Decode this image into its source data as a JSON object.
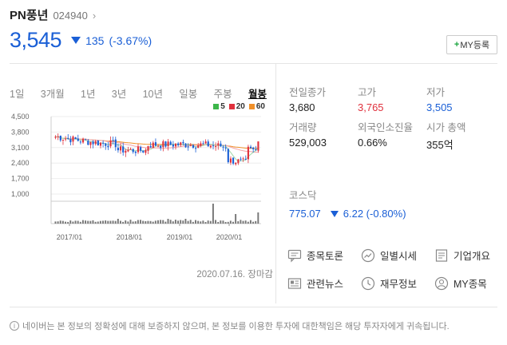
{
  "stock": {
    "name": "PN풍년",
    "code": "024940",
    "price": "3,545",
    "change": "135",
    "change_pct": "(-3.67%)"
  },
  "my_button": {
    "plus": "+",
    "label": "MY등록"
  },
  "period_tabs": [
    "1일",
    "3개월",
    "1년",
    "3년",
    "10년",
    "일봉",
    "주봉",
    "월봉"
  ],
  "active_tab": "월봉",
  "legend": [
    {
      "label": "5",
      "color": "#3cb64a"
    },
    {
      "label": "20",
      "color": "#e0313d"
    },
    {
      "label": "60",
      "color": "#f0902a"
    }
  ],
  "chart_data": {
    "type": "candlestick",
    "ylim": [
      1000,
      4500
    ],
    "y_ticks": [
      "4,500",
      "3,800",
      "3,100",
      "2,400",
      "1,700",
      "1,000"
    ],
    "x_ticks": [
      "2017/01",
      "2018/01",
      "2019/01",
      "2020/01"
    ],
    "date_label": "2020.07.16. 장마감"
  },
  "info": {
    "prev_close": {
      "label": "전일종가",
      "value": "3,680"
    },
    "high": {
      "label": "고가",
      "value": "3,765"
    },
    "low": {
      "label": "저가",
      "value": "3,505"
    },
    "volume": {
      "label": "거래량",
      "value": "529,003"
    },
    "foreign": {
      "label": "외국인소진율",
      "value": "0.66%"
    },
    "market_cap": {
      "label": "시가 총액",
      "value": "355억"
    }
  },
  "kosdaq": {
    "label": "코스닥",
    "value": "775.07",
    "change": "6.22 (-0.80%)"
  },
  "links": [
    {
      "label": "종목토론",
      "icon": "discussion-icon"
    },
    {
      "label": "일별시세",
      "icon": "trend-icon"
    },
    {
      "label": "기업개요",
      "icon": "document-icon"
    },
    {
      "label": "관련뉴스",
      "icon": "news-icon"
    },
    {
      "label": "재무정보",
      "icon": "clock-icon"
    },
    {
      "label": "MY종목",
      "icon": "user-icon"
    }
  ],
  "notice": "네이버는 본 정보의 정확성에 대해 보증하지 않으며, 본 정보를 이용한 투자에 대한책임은 해당 투자자에게 귀속됩니다."
}
